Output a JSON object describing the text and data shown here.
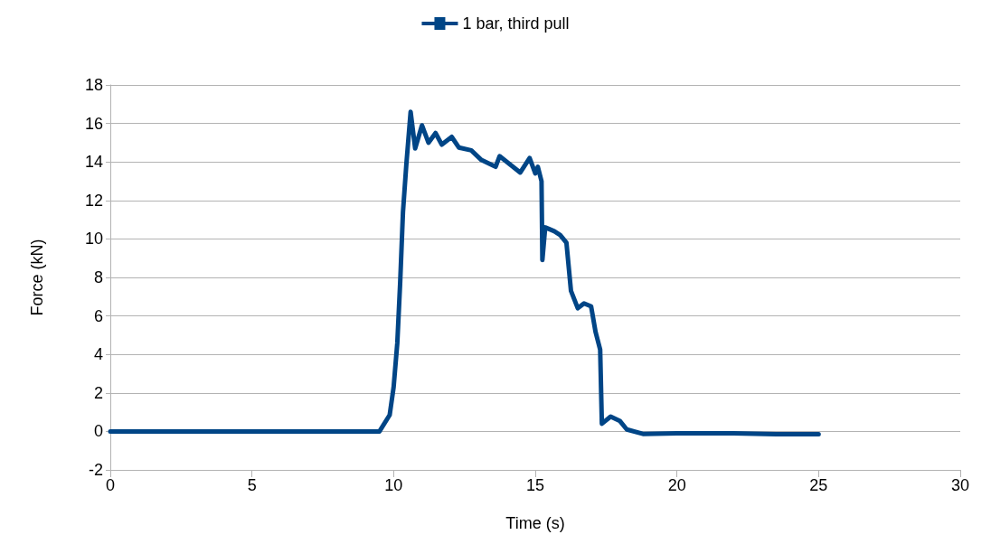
{
  "chart_data": {
    "type": "line",
    "xlabel": "Time (s)",
    "ylabel": "Force (kN)",
    "xlim": [
      0,
      30
    ],
    "xticks": [
      0,
      5,
      10,
      15,
      20,
      25,
      30
    ],
    "ylim": [
      -2,
      18
    ],
    "yticks": [
      -2,
      0,
      2,
      4,
      6,
      8,
      10,
      12,
      14,
      16,
      18
    ],
    "grid": "y",
    "legend": "top",
    "line_style": "solid",
    "series": [
      {
        "name": "1 bar, third pull",
        "color": "#004586",
        "x": [
          0,
          5,
          9.5,
          9.86,
          10.0,
          10.13,
          10.23,
          10.33,
          10.45,
          10.6,
          10.76,
          11.0,
          11.23,
          11.48,
          11.7,
          12.05,
          12.3,
          12.74,
          13.1,
          13.6,
          13.74,
          14.47,
          14.8,
          15.0,
          15.09,
          15.22,
          15.25,
          15.35,
          15.67,
          15.88,
          16.1,
          16.26,
          16.5,
          16.72,
          16.97,
          17.13,
          17.29,
          17.35,
          17.66,
          17.98,
          18.23,
          18.8,
          20,
          22,
          23.5,
          25
        ],
        "values": [
          0,
          0,
          0,
          0.85,
          2.3,
          4.6,
          7.7,
          11.4,
          13.9,
          16.6,
          14.7,
          15.9,
          15.0,
          15.5,
          14.9,
          15.3,
          14.75,
          14.6,
          14.1,
          13.75,
          14.3,
          13.45,
          14.2,
          13.4,
          13.75,
          13.0,
          8.9,
          10.6,
          10.4,
          10.2,
          9.8,
          7.3,
          6.4,
          6.65,
          6.5,
          5.15,
          4.25,
          0.4,
          0.77,
          0.55,
          0.1,
          -0.13,
          -0.1,
          -0.1,
          -0.15,
          -0.15
        ]
      }
    ]
  }
}
